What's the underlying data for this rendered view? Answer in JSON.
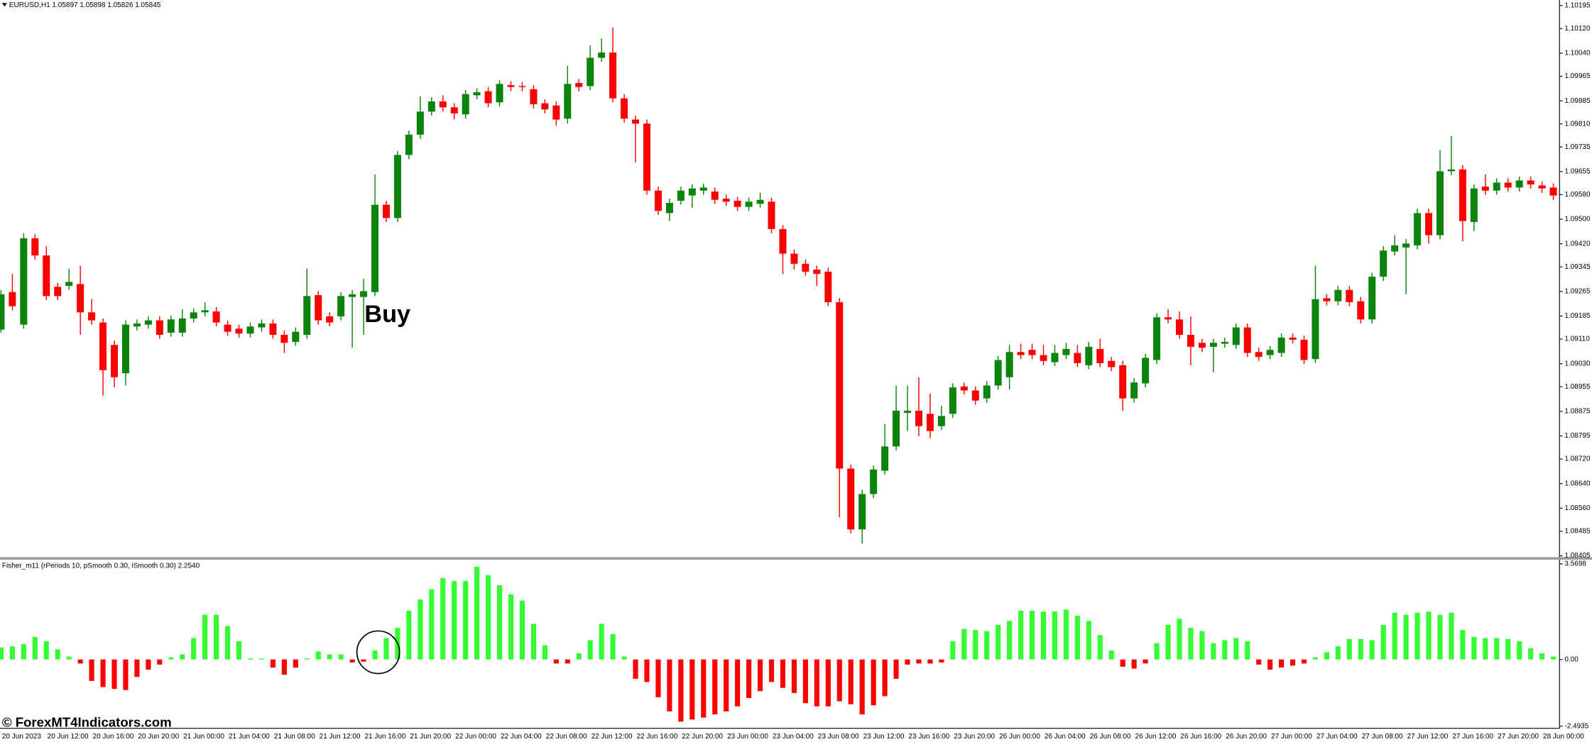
{
  "watermark": "© ForexMT4Indicators.com",
  "chart_data": [
    {
      "type": "candlestick",
      "title": "EURUSD,H1 1.05897 1.05898 1.05826 1.05845",
      "annotation": "Buy",
      "up_color": "#0a840a",
      "down_color": "#ff0000",
      "grid": false,
      "ylim": [
        1.08405,
        1.10213
      ],
      "yticks": [
        1.10195,
        {
          "value": 1.1012,
          "label": "1.10120"
        },
        {
          "value": 1.1004,
          "label": "1.10040"
        },
        1.09965,
        1.09885,
        {
          "value": 1.0981,
          "label": "1.09810"
        },
        1.09735,
        1.09655,
        {
          "value": 1.0958,
          "label": "1.09580"
        },
        {
          "value": 1.095,
          "label": "1.09500"
        },
        {
          "value": 1.0942,
          "label": "1.09420"
        },
        1.09345,
        1.09265,
        1.09185,
        {
          "value": 1.0911,
          "label": "1.09110"
        },
        {
          "value": 1.0903,
          "label": "1.09030"
        },
        1.08955,
        1.08875,
        1.08795,
        {
          "value": 1.0872,
          "label": "1.08720"
        },
        {
          "value": 1.0864,
          "label": "1.08640"
        },
        {
          "value": 1.0856,
          "label": "1.08560"
        },
        1.08485,
        1.08405
      ],
      "categories": [
        "20 Jun 2023",
        null,
        null,
        null,
        "20 Jun 12:00",
        null,
        null,
        null,
        "20 Jun 16:00",
        null,
        null,
        null,
        "20 Jun 20:00",
        null,
        null,
        null,
        "21 Jun 00:00",
        null,
        null,
        null,
        "21 Jun 04:00",
        null,
        null,
        null,
        "21 Jun 08:00",
        null,
        null,
        null,
        "21 Jun 12:00",
        null,
        null,
        null,
        "21 Jun 16:00",
        null,
        null,
        null,
        "21 Jun 20:00",
        null,
        null,
        null,
        "22 Jun 00:00",
        null,
        null,
        null,
        "22 Jun 04:00",
        null,
        null,
        null,
        "22 Jun 08:00",
        null,
        null,
        null,
        "22 Jun 12:00",
        null,
        null,
        null,
        "22 Jun 16:00",
        null,
        null,
        null,
        "22 Jun 20:00",
        null,
        null,
        null,
        "23 Jun 00:00",
        null,
        null,
        null,
        "23 Jun 04:00",
        null,
        null,
        null,
        "23 Jun 08:00",
        null,
        null,
        null,
        "23 Jun 12:00",
        null,
        null,
        null,
        "23 Jun 16:00",
        null,
        null,
        null,
        "23 Jun 20:00",
        null,
        null,
        null,
        "26 Jun 00:00",
        null,
        null,
        null,
        "26 Jun 04:00",
        null,
        null,
        null,
        "26 Jun 08:00",
        null,
        null,
        null,
        "26 Jun 12:00",
        null,
        null,
        null,
        "26 Jun 16:00",
        null,
        null,
        null,
        "26 Jun 20:00",
        null,
        null,
        null,
        "27 Jun 00:00",
        null,
        null,
        null,
        "27 Jun 04:00",
        null,
        null,
        null,
        "27 Jun 08:00",
        null,
        null,
        null,
        "27 Jun 12:00",
        null,
        null,
        null,
        "27 Jun 16:00",
        null,
        null,
        null,
        "27 Jun 20:00",
        null,
        null,
        null,
        "28 Jun 00:00",
        null
      ],
      "open": [
        1.09141,
        1.09263,
        1.09157,
        1.09438,
        1.09382,
        1.0928,
        1.09283,
        1.09289,
        1.09197,
        1.09164,
        1.09091,
        1.08999,
        1.09151,
        1.09157,
        1.09171,
        1.09131,
        1.09131,
        1.09177,
        1.09197,
        1.092,
        1.09157,
        1.09144,
        1.09128,
        1.09148,
        1.09161,
        1.09124,
        1.09101,
        1.09124,
        1.09253,
        1.09184,
        1.09184,
        1.09247,
        1.09247,
        1.09263,
        1.09547,
        1.09504,
        1.09709,
        1.09775,
        1.0985,
        1.09883,
        1.09864,
        1.09841,
        1.09903,
        1.09916,
        1.0988,
        1.09936,
        1.09933,
        1.09923,
        1.09877,
        1.0987,
        1.09827,
        1.09943,
        1.09933,
        1.10025,
        1.10042,
        1.09893,
        1.09824,
        1.09811,
        1.09593,
        1.0952,
        1.0956,
        1.09577,
        1.09593,
        1.0959,
        1.09567,
        1.0956,
        1.0954,
        1.0955,
        1.09557,
        1.09468,
        1.09388,
        1.09355,
        1.09336,
        1.09329,
        1.0923,
        1.08689,
        1.08491,
        1.08606,
        1.08682,
        1.08761,
        1.0887,
        1.08877,
        1.08867,
        1.08827,
        1.08867,
        1.08956,
        1.08943,
        1.08917,
        1.08959,
        1.08986,
        1.09068,
        1.09075,
        1.09058,
        1.09035,
        1.09058,
        1.09065,
        1.09025,
        1.09078,
        1.09039,
        1.09025,
        1.08917,
        1.08966,
        1.09042,
        1.09181,
        1.09174,
        1.09124,
        1.09098,
        1.09085,
        1.09095,
        1.09091,
        1.09148,
        1.09068,
        1.09058,
        1.09065,
        1.09115,
        1.09108,
        1.09045,
        1.09243,
        1.09233,
        1.0927,
        1.09233,
        1.09174,
        1.09313,
        1.09395,
        1.09408,
        1.09415,
        1.0952,
        1.09448,
        1.09656,
        1.09662,
        1.09491,
        1.09606,
        1.09593,
        1.09619,
        1.09603,
        1.09626,
        1.0961,
        1.09603
      ],
      "high": [
        1.0927,
        1.09322,
        1.09454,
        1.09451,
        1.09412,
        1.09293,
        1.09339,
        1.09349,
        1.0924,
        1.09177,
        1.09105,
        1.09171,
        1.09174,
        1.09184,
        1.09184,
        1.09187,
        1.09207,
        1.0921,
        1.0923,
        1.09214,
        1.09171,
        1.09157,
        1.09164,
        1.09174,
        1.09174,
        1.09138,
        1.09148,
        1.09339,
        1.09266,
        1.09197,
        1.09263,
        1.0927,
        1.09306,
        1.09646,
        1.0956,
        1.09722,
        1.09788,
        1.099,
        1.09897,
        1.09903,
        1.09877,
        1.0992,
        1.09926,
        1.0993,
        1.09953,
        1.09949,
        1.09946,
        1.09936,
        1.0989,
        1.09883,
        1.09999,
        1.09956,
        1.10065,
        1.10088,
        1.10124,
        1.09907,
        1.09837,
        1.09824,
        1.09606,
        1.09567,
        1.09606,
        1.09613,
        1.09616,
        1.09603,
        1.0958,
        1.09573,
        1.0957,
        1.09586,
        1.0957,
        1.09481,
        1.09402,
        1.09369,
        1.09349,
        1.09342,
        1.09243,
        1.08702,
        1.0862,
        1.08699,
        1.08834,
        1.08959,
        1.08959,
        1.08986,
        1.08933,
        1.08893,
        1.08966,
        1.08969,
        1.08956,
        1.08973,
        1.09055,
        1.09091,
        1.09095,
        1.09095,
        1.09091,
        1.09091,
        1.09098,
        1.09091,
        1.09101,
        1.09111,
        1.09052,
        1.09039,
        1.08983,
        1.09062,
        1.09194,
        1.09207,
        1.092,
        1.09184,
        1.09111,
        1.09111,
        1.09115,
        1.09161,
        1.09161,
        1.09082,
        1.09088,
        1.09128,
        1.09128,
        1.09121,
        1.09349,
        1.09256,
        1.09283,
        1.09283,
        1.09247,
        1.09326,
        1.09412,
        1.09448,
        1.09435,
        1.09534,
        1.09534,
        1.09725,
        1.09771,
        1.09676,
        1.09613,
        1.09646,
        1.09633,
        1.09633,
        1.09639,
        1.09639,
        1.09623,
        1.09616
      ],
      "low": [
        1.09131,
        1.09204,
        1.09144,
        1.09369,
        1.09237,
        1.09237,
        1.0927,
        1.09124,
        1.09157,
        1.08926,
        1.08953,
        1.08959,
        1.09138,
        1.09144,
        1.09111,
        1.09118,
        1.09118,
        1.09164,
        1.09184,
        1.09151,
        1.09121,
        1.09115,
        1.09115,
        1.09134,
        1.09111,
        1.09065,
        1.09088,
        1.09111,
        1.09157,
        1.09151,
        1.09171,
        1.09082,
        1.09124,
        1.0925,
        1.09491,
        1.09491,
        1.09695,
        1.09761,
        1.09837,
        1.0985,
        1.09824,
        1.09827,
        1.0989,
        1.09864,
        1.09867,
        1.09916,
        1.09916,
        1.0986,
        1.09844,
        1.09804,
        1.09811,
        1.09916,
        1.0992,
        1.10012,
        1.0988,
        1.09814,
        1.09685,
        1.0958,
        1.09514,
        1.09494,
        1.09547,
        1.09537,
        1.0958,
        1.0955,
        1.09544,
        1.09527,
        1.09527,
        1.09537,
        1.09454,
        1.09322,
        1.09336,
        1.09316,
        1.09283,
        1.09217,
        1.0853,
        1.08478,
        1.08445,
        1.08593,
        1.08669,
        1.08748,
        1.08811,
        1.08794,
        1.08788,
        1.08814,
        1.08854,
        1.0893,
        1.08897,
        1.08903,
        1.08946,
        1.08946,
        1.09045,
        1.09045,
        1.09025,
        1.09022,
        1.09045,
        1.09019,
        1.09012,
        1.09019,
        1.09006,
        1.08877,
        1.08903,
        1.08953,
        1.09029,
        1.09161,
        1.09111,
        1.09025,
        1.09068,
        1.09002,
        1.09082,
        1.09078,
        1.09052,
        1.09039,
        1.09045,
        1.09052,
        1.09095,
        1.09029,
        1.09032,
        1.0922,
        1.0922,
        1.09217,
        1.09161,
        1.09161,
        1.09299,
        1.09382,
        1.09256,
        1.09402,
        1.09421,
        1.09435,
        1.09643,
        1.09428,
        1.09461,
        1.0958,
        1.0958,
        1.0959,
        1.0959,
        1.096,
        1.09586,
        1.09563
      ],
      "close": [
        1.09256,
        1.09217,
        1.09438,
        1.09382,
        1.0925,
        1.0925,
        1.09296,
        1.09197,
        1.09171,
        1.09009,
        1.08986,
        1.09157,
        1.09161,
        1.09171,
        1.09124,
        1.09174,
        1.09177,
        1.09197,
        1.09204,
        1.09164,
        1.09134,
        1.09128,
        1.09151,
        1.09161,
        1.09124,
        1.09098,
        1.09134,
        1.0925,
        1.09171,
        1.09164,
        1.0925,
        1.09256,
        1.09266,
        1.09547,
        1.09504,
        1.09709,
        1.09775,
        1.0985,
        1.09883,
        1.09864,
        1.09844,
        1.09907,
        1.09913,
        1.09877,
        1.0994,
        1.0993,
        1.0993,
        1.09874,
        1.09857,
        1.09824,
        1.0994,
        1.0993,
        1.10025,
        1.10042,
        1.09893,
        1.09827,
        1.09811,
        1.09593,
        1.09527,
        1.09553,
        1.09593,
        1.096,
        1.09603,
        1.09563,
        1.09557,
        1.0954,
        1.09557,
        1.09563,
        1.09468,
        1.09388,
        1.09355,
        1.09329,
        1.09322,
        1.0923,
        1.08689,
        1.08491,
        1.08606,
        1.08686,
        1.08761,
        1.08877,
        1.08877,
        1.08827,
        1.08811,
        1.0886,
        1.08953,
        1.08943,
        1.0891,
        1.08959,
        1.09042,
        1.09068,
        1.09058,
        1.09058,
        1.09039,
        1.09065,
        1.09078,
        1.09032,
        1.09085,
        1.09032,
        1.09019,
        1.08917,
        1.08969,
        1.09049,
        1.09181,
        1.09174,
        1.09124,
        1.09085,
        1.09082,
        1.09098,
        1.09101,
        1.09148,
        1.09065,
        1.09052,
        1.09075,
        1.09115,
        1.09108,
        1.09042,
        1.0924,
        1.09233,
        1.0927,
        1.0923,
        1.09174,
        1.09313,
        1.09398,
        1.09415,
        1.09421,
        1.0952,
        1.09448,
        1.09656,
        1.09662,
        1.09494,
        1.096,
        1.09593,
        1.09619,
        1.09603,
        1.09626,
        1.09613,
        1.096,
        1.09577
      ]
    },
    {
      "type": "bar",
      "title": "Fisher_m11 (rPeriods 10, pSmooth 0.30, iSmooth 0.30) 2.2540",
      "positive_color": "#33ff33",
      "negative_color": "#ff0000",
      "grid": false,
      "ylim": [
        -2.57,
        3.68
      ],
      "yticks": [
        3.5698,
        {
          "value": 0,
          "label": "0.00"
        },
        -2.4935
      ],
      "values": [
        0.45,
        0.49,
        0.57,
        0.84,
        0.68,
        0.38,
        0.11,
        -0.15,
        -0.8,
        -1.03,
        -1.1,
        -1.14,
        -0.65,
        -0.38,
        -0.19,
        0.08,
        0.19,
        0.8,
        1.67,
        1.67,
        1.25,
        0.68,
        0.04,
        0.04,
        -0.3,
        -0.57,
        -0.3,
        0.04,
        0.3,
        0.19,
        0.19,
        -0.11,
        -0.08,
        0.34,
        0.8,
        1.18,
        1.82,
        2.24,
        2.62,
        3.04,
        2.93,
        2.93,
        3.46,
        3.15,
        2.77,
        2.43,
        2.2,
        1.33,
        0.53,
        -0.15,
        -0.15,
        0.23,
        0.72,
        1.33,
        0.95,
        0.11,
        -0.72,
        -0.84,
        -1.41,
        -1.94,
        -2.32,
        -2.24,
        -2.17,
        -2.05,
        -1.94,
        -1.75,
        -1.44,
        -1.18,
        -0.84,
        -1.06,
        -1.25,
        -1.63,
        -1.75,
        -1.75,
        -1.56,
        -1.67,
        -2.05,
        -1.71,
        -1.37,
        -0.72,
        -0.19,
        -0.15,
        -0.15,
        -0.11,
        0.68,
        1.14,
        1.1,
        1.06,
        1.29,
        1.44,
        1.82,
        1.82,
        1.79,
        1.79,
        1.86,
        1.63,
        1.44,
        0.91,
        0.34,
        -0.27,
        -0.34,
        -0.15,
        0.61,
        1.29,
        1.52,
        1.18,
        1.06,
        0.61,
        0.72,
        0.8,
        0.68,
        -0.19,
        -0.38,
        -0.3,
        -0.23,
        -0.15,
        0.08,
        0.27,
        0.49,
        0.76,
        0.76,
        0.72,
        1.29,
        1.75,
        1.67,
        1.75,
        1.79,
        1.67,
        1.75,
        1.1,
        0.84,
        0.8,
        0.8,
        0.76,
        0.68,
        0.42,
        0.23,
        0.11
      ]
    }
  ]
}
